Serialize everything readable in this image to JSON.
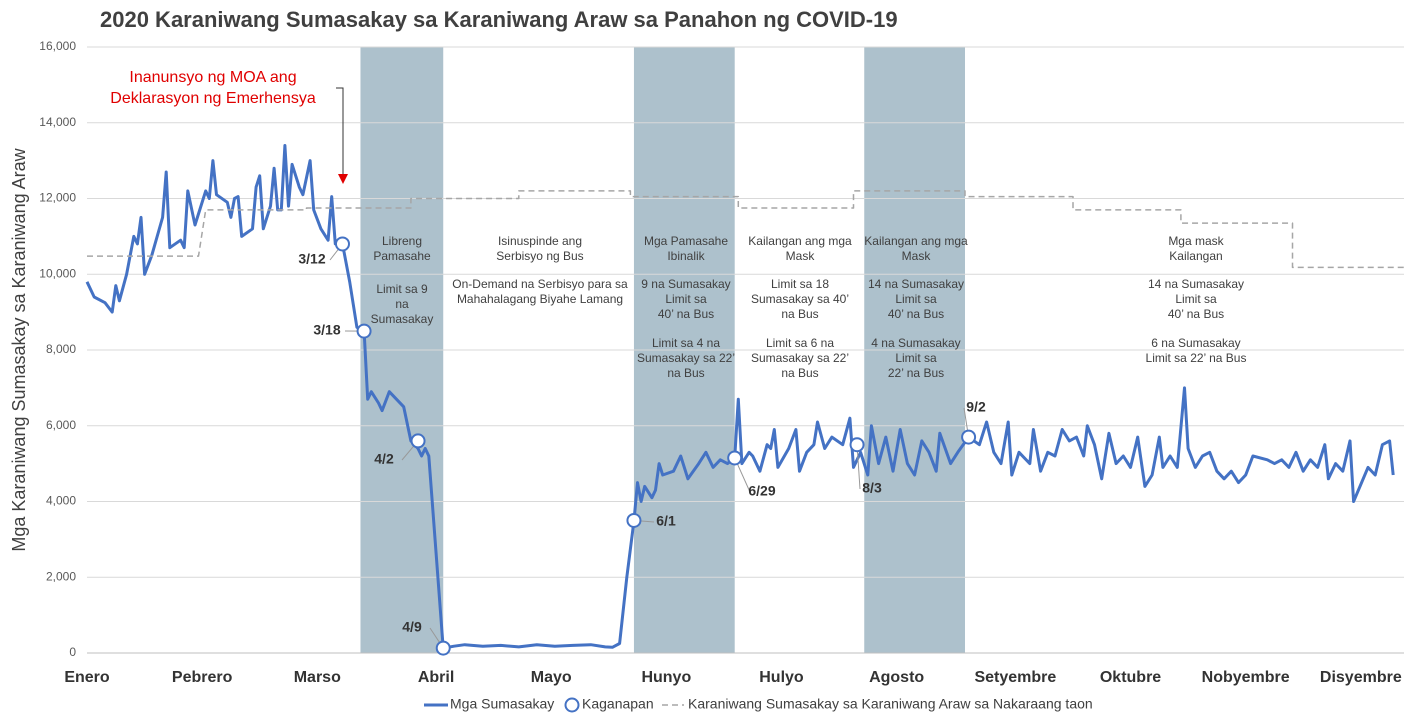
{
  "chart_data": {
    "type": "line",
    "title": "2020 Karaniwang Sumasakay sa Karaniwang Araw sa Panahon ng COVID-19",
    "y_label": "Mga Karaniwang Sumasakay sa Karaniwang Araw",
    "xlim": [
      0,
      366
    ],
    "xticks": [
      {
        "value": 0,
        "label": "Enero"
      },
      {
        "value": 32,
        "label": "Pebrero"
      },
      {
        "value": 64,
        "label": "Marso"
      },
      {
        "value": 97,
        "label": "Abril"
      },
      {
        "value": 129,
        "label": "Mayo"
      },
      {
        "value": 161,
        "label": "Hunyo"
      },
      {
        "value": 193,
        "label": "Hulyo"
      },
      {
        "value": 225,
        "label": "Agosto"
      },
      {
        "value": 258,
        "label": "Setyembre"
      },
      {
        "value": 290,
        "label": "Oktubre"
      },
      {
        "value": 322,
        "label": "Nobyembre"
      },
      {
        "value": 354,
        "label": "Disyembre"
      }
    ],
    "ylim": [
      0,
      16000
    ],
    "yticks": [
      0,
      {
        "value": 2000,
        "label": "2,000"
      },
      {
        "value": 4000,
        "label": "4,000"
      },
      {
        "value": 6000,
        "label": "6,000"
      },
      {
        "value": 8000,
        "label": "8,000"
      },
      {
        "value": 10000,
        "label": "10,000"
      },
      {
        "value": 12000,
        "label": "12,000"
      },
      {
        "value": 14000,
        "label": "14,000"
      },
      {
        "value": 16000,
        "label": "16,000"
      }
    ],
    "grid": true,
    "shaded": [
      [
        76,
        99
      ],
      [
        152,
        180
      ],
      [
        216,
        244
      ]
    ],
    "shade_color": "#adc1cc",
    "series": [
      {
        "name": "Mga Sumasakay",
        "color": "#4472c4",
        "dash": false,
        "x": [
          0,
          2,
          5,
          7,
          8,
          9,
          11,
          13,
          14,
          15,
          16,
          18,
          21,
          22,
          23,
          26,
          27,
          28,
          30,
          33,
          34,
          35,
          36,
          39,
          40,
          41,
          42,
          43,
          46,
          47,
          48,
          49,
          51,
          52,
          53,
          54,
          55,
          56,
          57,
          59,
          60,
          62,
          63,
          65,
          67,
          68,
          69,
          71,
          73,
          75,
          77,
          78,
          79,
          81,
          82,
          84,
          88,
          90,
          92,
          93,
          94,
          95,
          99,
          102,
          105,
          110,
          115,
          120,
          125,
          130,
          135,
          140,
          144,
          146,
          148,
          150,
          152,
          153,
          154,
          155,
          157,
          158,
          159,
          160,
          163,
          165,
          167,
          170,
          172,
          174,
          176,
          178,
          180,
          181,
          182,
          184,
          185,
          187,
          189,
          190,
          191,
          192,
          195,
          197,
          198,
          200,
          202,
          203,
          205,
          207,
          210,
          212,
          213,
          215,
          217,
          218,
          220,
          222,
          224,
          226,
          228,
          230,
          232,
          234,
          236,
          237,
          240,
          242,
          245,
          248,
          250,
          252,
          254,
          256,
          257,
          259,
          262,
          263,
          265,
          267,
          269,
          271,
          273,
          275,
          277,
          278,
          280,
          282,
          284,
          286,
          288,
          290,
          292,
          294,
          296,
          298,
          299,
          301,
          303,
          305,
          306,
          308,
          310,
          312,
          314,
          316,
          318,
          320,
          322,
          324,
          328,
          330,
          332,
          334,
          336,
          338,
          340,
          342,
          344,
          345,
          347,
          349,
          351,
          352,
          356,
          358,
          360,
          362,
          363
        ],
        "values": [
          9800,
          9400,
          9250,
          9000,
          9700,
          9300,
          10000,
          11000,
          10800,
          11500,
          10000,
          10500,
          11500,
          12700,
          10700,
          10900,
          10700,
          12200,
          11300,
          12200,
          12000,
          13000,
          12100,
          11900,
          11500,
          12000,
          12050,
          11000,
          11200,
          12300,
          12600,
          11200,
          11800,
          12800,
          11700,
          11700,
          13400,
          11800,
          12900,
          12300,
          12100,
          13000,
          11700,
          11200,
          10900,
          12050,
          10800,
          10800,
          9800,
          8600,
          8500,
          6700,
          6900,
          6600,
          6400,
          6900,
          6500,
          5600,
          5400,
          5200,
          5400,
          5200,
          130,
          180,
          220,
          180,
          200,
          160,
          220,
          180,
          200,
          220,
          160,
          150,
          250,
          2000,
          3500,
          4500,
          4000,
          4400,
          4100,
          4300,
          5000,
          4700,
          4800,
          5200,
          4600,
          5000,
          5300,
          4900,
          5100,
          5000,
          5150,
          6700,
          5000,
          5300,
          5200,
          4800,
          5500,
          5400,
          5900,
          4900,
          5400,
          5900,
          4800,
          5300,
          5500,
          6100,
          5400,
          5700,
          5500,
          6200,
          4900,
          5300,
          4700,
          6000,
          5000,
          5700,
          4800,
          5900,
          5000,
          4700,
          5600,
          5300,
          4800,
          5800,
          5000,
          5300,
          5700,
          5500,
          6100,
          5300,
          5000,
          6100,
          4700,
          5300,
          5000,
          5900,
          4800,
          5300,
          5200,
          5900,
          5600,
          5700,
          5200,
          6000,
          5500,
          4600,
          5800,
          5000,
          5200,
          4900,
          5700,
          4400,
          4700,
          5700,
          4900,
          5200,
          4900,
          7000,
          5400,
          4900,
          5200,
          5300,
          4800,
          4600,
          4800,
          4500,
          4700,
          5200,
          5100,
          5000,
          5100,
          4900,
          5300,
          4800,
          5100,
          4900,
          5500,
          4600,
          5000,
          4800,
          5600,
          4000,
          4900,
          4700,
          5500,
          5600,
          4700
        ]
      },
      {
        "name": "Karaniwang Sumasakay sa Karaniwang Araw sa Nakaraang taon",
        "color": "#a6a6a6",
        "dash": true,
        "x": [
          0,
          31,
          33,
          61,
          61,
          90,
          90,
          120,
          120,
          151,
          151,
          181,
          181,
          213,
          213,
          244,
          244,
          274,
          274,
          304,
          304,
          335,
          335,
          366
        ],
        "values": [
          10480,
          10480,
          11700,
          11700,
          11750,
          11750,
          12000,
          12000,
          12200,
          12200,
          12050,
          12050,
          11750,
          11750,
          12200,
          12200,
          12050,
          12050,
          11700,
          11700,
          11350,
          11350,
          10180,
          10180
        ]
      }
    ],
    "events": {
      "name": "Kaganapan",
      "color": "#4472c4",
      "labels": [
        "3/12",
        "3/18",
        "4/2",
        "4/9",
        "6/1",
        "6/29",
        "8/3",
        "9/2"
      ],
      "x": [
        71,
        77,
        92,
        99,
        152,
        180,
        214,
        245
      ],
      "values": [
        10800,
        8500,
        5600,
        130,
        3500,
        5150,
        5500,
        5700
      ]
    },
    "callout": {
      "lines": [
        "Inanunsyo ng MOA ang",
        "Deklarasyon ng Emerhensya"
      ],
      "color": "#e00000"
    },
    "annotations": [
      {
        "lines": [
          "Libreng",
          "Pamasahe"
        ]
      },
      {
        "lines": [
          "Limit sa 9",
          "na",
          "Sumasakay"
        ]
      },
      {
        "lines": [
          "Isinuspinde ang",
          "Serbisyo ng Bus"
        ]
      },
      {
        "lines": [
          "On-Demand na Serbisyo para sa",
          "Mahahalagang Biyahe Lamang"
        ]
      },
      {
        "lines": [
          "Mga Pamasahe",
          "Ibinalik"
        ]
      },
      {
        "lines": [
          "9 na Sumasakay",
          "Limit sa",
          "40’ na Bus"
        ]
      },
      {
        "lines": [
          "Limit sa 4 na",
          "Sumasakay sa 22’",
          "na Bus"
        ]
      },
      {
        "lines": [
          "Kailangan ang mga",
          "Mask"
        ]
      },
      {
        "lines": [
          "Limit sa 18",
          "Sumasakay sa 40’",
          "na Bus"
        ]
      },
      {
        "lines": [
          "Limit sa 6 na",
          "Sumasakay sa 22’",
          "na Bus"
        ]
      },
      {
        "lines": [
          "Kailangan ang mga",
          "Mask"
        ]
      },
      {
        "lines": [
          "14 na Sumasakay",
          "Limit sa",
          "40’ na Bus"
        ]
      },
      {
        "lines": [
          "4 na Sumasakay",
          "Limit sa",
          "22’ na Bus"
        ]
      },
      {
        "lines": [
          "Mga mask",
          "Kailangan"
        ]
      },
      {
        "lines": [
          "14 na Sumasakay",
          "Limit sa",
          "40’ na Bus"
        ]
      },
      {
        "lines": [
          "6 na Sumasakay",
          "Limit sa 22’ na Bus"
        ]
      }
    ]
  }
}
